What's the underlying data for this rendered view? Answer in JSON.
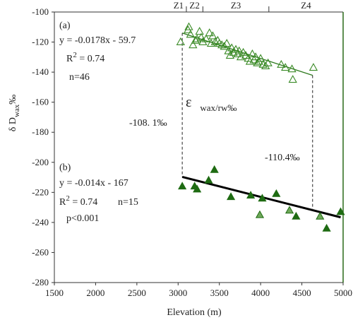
{
  "chart_data": {
    "type": "scatter",
    "xlabel": "Elevation (m)",
    "ylabel_main": "δ D",
    "ylabel_sub": "wax",
    "ylabel_unit": "‰",
    "xlim": [
      1500,
      5000
    ],
    "ylim": [
      -280,
      -100
    ],
    "xticks": [
      1500,
      2000,
      2500,
      3000,
      3500,
      4000,
      4500,
      5000
    ],
    "yticks": [
      -100,
      -120,
      -140,
      -160,
      -180,
      -200,
      -220,
      -240,
      -260,
      -280
    ],
    "zones": {
      "labels": [
        "Z1",
        "Z2",
        "Z3",
        "Z4"
      ],
      "boundaries": [
        3100,
        3300,
        4100
      ]
    },
    "panel_a": {
      "label": "(a)",
      "equation": "y = -0.0178x - 59.7",
      "r2_prefix": "R",
      "r2_sup": "2",
      "r2_value": " = 0.74",
      "n": "n=46",
      "marker": "triangle-open",
      "color": "#3a8a26",
      "fit": {
        "slope": -0.0178,
        "intercept": -59.7,
        "x_range": [
          3050,
          4630
        ]
      },
      "points": [
        [
          3030,
          -120
        ],
        [
          3120,
          -112
        ],
        [
          3130,
          -110
        ],
        [
          3150,
          -115
        ],
        [
          3180,
          -122
        ],
        [
          3210,
          -119
        ],
        [
          3230,
          -118
        ],
        [
          3260,
          -113
        ],
        [
          3280,
          -117
        ],
        [
          3300,
          -120
        ],
        [
          3340,
          -118
        ],
        [
          3380,
          -114
        ],
        [
          3400,
          -121
        ],
        [
          3420,
          -116
        ],
        [
          3450,
          -120
        ],
        [
          3480,
          -119
        ],
        [
          3500,
          -121
        ],
        [
          3530,
          -122
        ],
        [
          3560,
          -123
        ],
        [
          3590,
          -121
        ],
        [
          3610,
          -126
        ],
        [
          3630,
          -129
        ],
        [
          3650,
          -124
        ],
        [
          3670,
          -127
        ],
        [
          3700,
          -125
        ],
        [
          3720,
          -128
        ],
        [
          3740,
          -126
        ],
        [
          3760,
          -130
        ],
        [
          3790,
          -127
        ],
        [
          3820,
          -129
        ],
        [
          3850,
          -131
        ],
        [
          3870,
          -133
        ],
        [
          3900,
          -128
        ],
        [
          3920,
          -132
        ],
        [
          3940,
          -130
        ],
        [
          3960,
          -134
        ],
        [
          3980,
          -133
        ],
        [
          4000,
          -131
        ],
        [
          4030,
          -135
        ],
        [
          4060,
          -136
        ],
        [
          4090,
          -134
        ],
        [
          4250,
          -135
        ],
        [
          4300,
          -137
        ],
        [
          4380,
          -138
        ],
        [
          4390,
          -145
        ],
        [
          4640,
          -137
        ]
      ]
    },
    "panel_b": {
      "label": "(b)",
      "equation": "y = -0.014x - 167",
      "r2_prefix": "R",
      "r2_sup": "2",
      "r2_value": " = 0.74",
      "n": "n=15",
      "p": "p<0.001",
      "marker": "triangle-filled",
      "color": "#1e6b12",
      "fit": {
        "slope": -0.014,
        "intercept": -167,
        "x_range": [
          3050,
          4970
        ]
      },
      "points": [
        [
          3050,
          -216
        ],
        [
          3200,
          -216
        ],
        [
          3230,
          -218
        ],
        [
          3370,
          -212
        ],
        [
          3440,
          -205
        ],
        [
          3640,
          -223
        ],
        [
          3880,
          -222
        ],
        [
          3990,
          -235
        ],
        [
          4020,
          -224
        ],
        [
          4190,
          -221
        ],
        [
          4350,
          -232
        ],
        [
          4430,
          -236
        ],
        [
          4720,
          -236
        ],
        [
          4800,
          -244
        ],
        [
          4970,
          -233
        ]
      ]
    },
    "epsilon": {
      "symbol": "ε",
      "sub": "wax/rw",
      "unit": "‰",
      "left_label": "-108. 1‰",
      "right_label": "-110.4‰",
      "x_left": 3050,
      "x_right": 4630
    }
  }
}
